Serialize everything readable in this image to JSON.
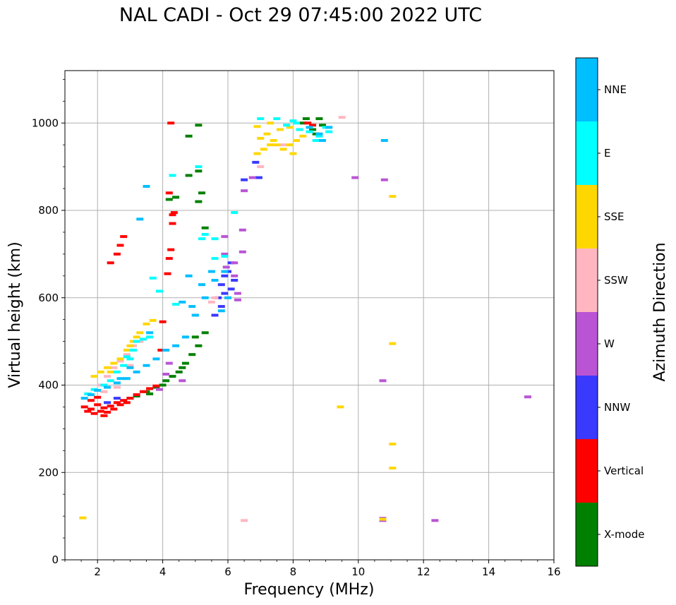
{
  "chart_data": {
    "type": "scatter",
    "title": "NAL CADI - Oct 29 07:45:00 2022 UTC",
    "xlabel": "Frequency (MHz)",
    "ylabel": "Virtual height (km)",
    "xlim": [
      1,
      16
    ],
    "ylim": [
      0,
      1120
    ],
    "xticks": [
      2,
      4,
      6,
      8,
      10,
      12,
      14,
      16
    ],
    "yticks": [
      0,
      200,
      400,
      600,
      800,
      1000
    ],
    "grid": true,
    "colorbar": {
      "label": "Azimuth Direction",
      "categories": [
        {
          "name": "X-mode",
          "color": "#008000"
        },
        {
          "name": "Vertical",
          "color": "#ff0000"
        },
        {
          "name": "NNW",
          "color": "#3a3aff"
        },
        {
          "name": "W",
          "color": "#b955d4"
        },
        {
          "name": "SSW",
          "color": "#ffb6c1"
        },
        {
          "name": "SSE",
          "color": "#ffd700"
        },
        {
          "name": "E",
          "color": "#00ffff"
        },
        {
          "name": "NNE",
          "color": "#00bfff"
        }
      ]
    },
    "series": [
      {
        "name": "X-mode",
        "color": "#008000",
        "points": [
          [
            3.2,
            375
          ],
          [
            3.5,
            385
          ],
          [
            3.8,
            395
          ],
          [
            4.1,
            410
          ],
          [
            4.3,
            420
          ],
          [
            4.5,
            430
          ],
          [
            4.7,
            450
          ],
          [
            4.9,
            470
          ],
          [
            5.1,
            490
          ],
          [
            5.3,
            520
          ],
          [
            5.0,
            510
          ],
          [
            4.6,
            440
          ],
          [
            4.0,
            400
          ],
          [
            3.6,
            380
          ],
          [
            3.0,
            370
          ],
          [
            8.4,
            1010
          ],
          [
            8.8,
            1010
          ],
          [
            8.9,
            995
          ],
          [
            8.6,
            985
          ],
          [
            8.3,
            1000
          ],
          [
            8.7,
            975
          ],
          [
            4.4,
            830
          ],
          [
            4.8,
            880
          ],
          [
            5.1,
            890
          ],
          [
            5.1,
            820
          ],
          [
            5.2,
            840
          ],
          [
            4.8,
            970
          ],
          [
            5.1,
            995
          ],
          [
            5.3,
            760
          ],
          [
            4.2,
            825
          ]
        ]
      },
      {
        "name": "Vertical",
        "color": "#ff0000",
        "points": [
          [
            1.6,
            350
          ],
          [
            1.7,
            340
          ],
          [
            1.8,
            345
          ],
          [
            1.9,
            335
          ],
          [
            2.0,
            355
          ],
          [
            2.1,
            340
          ],
          [
            2.2,
            348
          ],
          [
            2.3,
            338
          ],
          [
            2.4,
            352
          ],
          [
            2.5,
            345
          ],
          [
            2.6,
            360
          ],
          [
            2.7,
            355
          ],
          [
            2.8,
            365
          ],
          [
            2.9,
            360
          ],
          [
            3.0,
            370
          ],
          [
            3.2,
            378
          ],
          [
            3.4,
            385
          ],
          [
            3.6,
            392
          ],
          [
            3.8,
            398
          ],
          [
            1.8,
            365
          ],
          [
            2.2,
            330
          ],
          [
            2.0,
            372
          ],
          [
            4.0,
            545
          ],
          [
            3.95,
            480
          ],
          [
            4.15,
            655
          ],
          [
            4.2,
            690
          ],
          [
            4.25,
            710
          ],
          [
            4.3,
            790
          ],
          [
            4.35,
            795
          ],
          [
            4.3,
            770
          ],
          [
            4.2,
            840
          ],
          [
            4.25,
            1000
          ],
          [
            2.8,
            740
          ],
          [
            2.6,
            700
          ],
          [
            2.4,
            680
          ],
          [
            2.7,
            720
          ],
          [
            8.45,
            1000
          ],
          [
            8.6,
            995
          ]
        ]
      },
      {
        "name": "NNW",
        "color": "#3a3aff",
        "points": [
          [
            5.7,
            600
          ],
          [
            5.8,
            630
          ],
          [
            5.9,
            650
          ],
          [
            6.0,
            660
          ],
          [
            6.1,
            680
          ],
          [
            6.2,
            640
          ],
          [
            6.1,
            620
          ],
          [
            5.8,
            580
          ],
          [
            5.6,
            560
          ],
          [
            5.9,
            610
          ],
          [
            6.85,
            910
          ],
          [
            6.95,
            875
          ],
          [
            6.5,
            870
          ],
          [
            2.3,
            360
          ],
          [
            2.6,
            370
          ]
        ]
      },
      {
        "name": "W",
        "color": "#b955d4",
        "points": [
          [
            5.9,
            700
          ],
          [
            5.9,
            740
          ],
          [
            6.2,
            650
          ],
          [
            6.3,
            610
          ],
          [
            6.3,
            595
          ],
          [
            6.2,
            680
          ],
          [
            5.95,
            670
          ],
          [
            6.45,
            755
          ],
          [
            6.45,
            705
          ],
          [
            6.5,
            845
          ],
          [
            6.75,
            875
          ],
          [
            9.9,
            875
          ],
          [
            10.8,
            870
          ],
          [
            10.75,
            410
          ],
          [
            10.75,
            95
          ],
          [
            10.75,
            90
          ],
          [
            12.35,
            90
          ],
          [
            15.2,
            373
          ],
          [
            4.2,
            450
          ],
          [
            4.1,
            425
          ],
          [
            4.6,
            410
          ],
          [
            3.9,
            390
          ]
        ]
      },
      {
        "name": "SSW",
        "color": "#ffb6c1",
        "points": [
          [
            2.1,
            400
          ],
          [
            2.3,
            420
          ],
          [
            2.5,
            440
          ],
          [
            2.7,
            455
          ],
          [
            2.9,
            470
          ],
          [
            3.1,
            490
          ],
          [
            3.3,
            500
          ],
          [
            2.2,
            385
          ],
          [
            2.6,
            395
          ],
          [
            5.5,
            590
          ],
          [
            5.6,
            600
          ],
          [
            6.5,
            90
          ],
          [
            7.0,
            900
          ],
          [
            9.5,
            1013
          ],
          [
            7.7,
            950
          ],
          [
            3.0,
            445
          ]
        ]
      },
      {
        "name": "SSE",
        "color": "#ffd700",
        "points": [
          [
            1.9,
            420
          ],
          [
            2.1,
            430
          ],
          [
            2.3,
            440
          ],
          [
            2.5,
            450
          ],
          [
            2.7,
            460
          ],
          [
            2.9,
            480
          ],
          [
            3.1,
            500
          ],
          [
            3.3,
            520
          ],
          [
            3.5,
            540
          ],
          [
            3.7,
            548
          ],
          [
            3.0,
            490
          ],
          [
            3.2,
            510
          ],
          [
            2.4,
            430
          ],
          [
            6.9,
            930
          ],
          [
            7.1,
            940
          ],
          [
            7.3,
            950
          ],
          [
            7.5,
            950
          ],
          [
            7.7,
            940
          ],
          [
            7.9,
            950
          ],
          [
            8.1,
            960
          ],
          [
            8.3,
            970
          ],
          [
            7.2,
            975
          ],
          [
            7.6,
            985
          ],
          [
            7.0,
            965
          ],
          [
            7.4,
            960
          ],
          [
            8.0,
            930
          ],
          [
            6.9,
            992
          ],
          [
            7.3,
            1000
          ],
          [
            7.9,
            990
          ],
          [
            9.45,
            350
          ],
          [
            11.05,
            265
          ],
          [
            11.05,
            210
          ],
          [
            11.05,
            495
          ],
          [
            11.05,
            832
          ],
          [
            10.75,
            93
          ],
          [
            1.55,
            96
          ]
        ]
      },
      {
        "name": "E",
        "color": "#00ffff",
        "points": [
          [
            1.7,
            380
          ],
          [
            1.9,
            390
          ],
          [
            2.2,
            400
          ],
          [
            2.4,
            410
          ],
          [
            2.6,
            430
          ],
          [
            2.8,
            445
          ],
          [
            3.0,
            460
          ],
          [
            3.2,
            500
          ],
          [
            3.4,
            505
          ],
          [
            3.6,
            510
          ],
          [
            3.1,
            480
          ],
          [
            2.9,
            465
          ],
          [
            7.0,
            1010
          ],
          [
            7.5,
            1010
          ],
          [
            8.0,
            1005
          ],
          [
            8.2,
            985
          ],
          [
            8.5,
            980
          ],
          [
            8.8,
            970
          ],
          [
            9.0,
            990
          ],
          [
            9.1,
            980
          ],
          [
            8.7,
            960
          ],
          [
            7.8,
            995
          ],
          [
            8.1,
            1000
          ],
          [
            5.1,
            900
          ],
          [
            4.3,
            880
          ],
          [
            6.2,
            795
          ],
          [
            5.3,
            745
          ],
          [
            5.6,
            735
          ],
          [
            5.2,
            735
          ],
          [
            3.7,
            645
          ],
          [
            3.9,
            615
          ],
          [
            4.4,
            585
          ],
          [
            5.9,
            695
          ],
          [
            5.6,
            690
          ]
        ]
      },
      {
        "name": "NNE",
        "color": "#00bfff",
        "points": [
          [
            1.6,
            370
          ],
          [
            1.8,
            378
          ],
          [
            2.0,
            388
          ],
          [
            2.3,
            395
          ],
          [
            2.6,
            405
          ],
          [
            2.9,
            415
          ],
          [
            3.2,
            430
          ],
          [
            3.5,
            445
          ],
          [
            3.8,
            460
          ],
          [
            4.1,
            480
          ],
          [
            4.4,
            490
          ],
          [
            4.7,
            510
          ],
          [
            5.0,
            560
          ],
          [
            5.3,
            600
          ],
          [
            5.6,
            640
          ],
          [
            5.9,
            660
          ],
          [
            6.0,
            600
          ],
          [
            5.8,
            570
          ],
          [
            4.6,
            590
          ],
          [
            4.8,
            650
          ],
          [
            4.9,
            580
          ],
          [
            5.2,
            630
          ],
          [
            2.7,
            415
          ],
          [
            3.0,
            440
          ],
          [
            8.5,
            990
          ],
          [
            8.8,
            975
          ],
          [
            9.1,
            990
          ],
          [
            8.9,
            960
          ],
          [
            10.8,
            960
          ],
          [
            3.3,
            780
          ],
          [
            3.5,
            855
          ],
          [
            5.5,
            660
          ],
          [
            5.0,
            560
          ],
          [
            3.6,
            520
          ]
        ]
      }
    ]
  }
}
